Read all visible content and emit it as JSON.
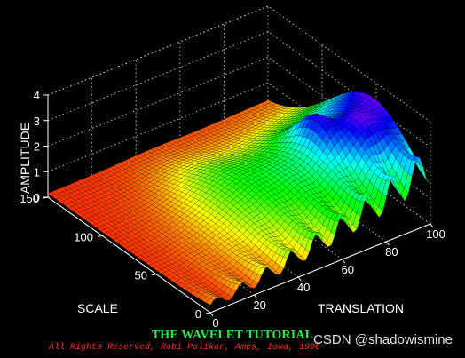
{
  "chart_data": {
    "type": "surface3d",
    "axes": {
      "x": {
        "label": "TRANSLATION",
        "ticks": [
          0,
          20,
          40,
          60,
          80,
          100
        ],
        "range": [
          0,
          100
        ]
      },
      "y": {
        "label": "SCALE",
        "ticks": [
          0,
          50,
          100,
          150
        ],
        "range": [
          0,
          150
        ]
      },
      "z": {
        "label": "AMPLITUDE",
        "ticks": [
          0,
          1,
          2,
          3,
          4
        ],
        "range": [
          0,
          4
        ]
      }
    },
    "grid": true
  },
  "footer": {
    "title": "THE WAVELET TUTORIAL",
    "copyright": "All Rights Reserved, Robi Polikar, Ames, Iowa, 1996",
    "watermark": "CSDN @shadowismine"
  },
  "colors": {
    "background": "#000000",
    "title": "#2ee84a",
    "copyright": "#ff2a2a"
  }
}
